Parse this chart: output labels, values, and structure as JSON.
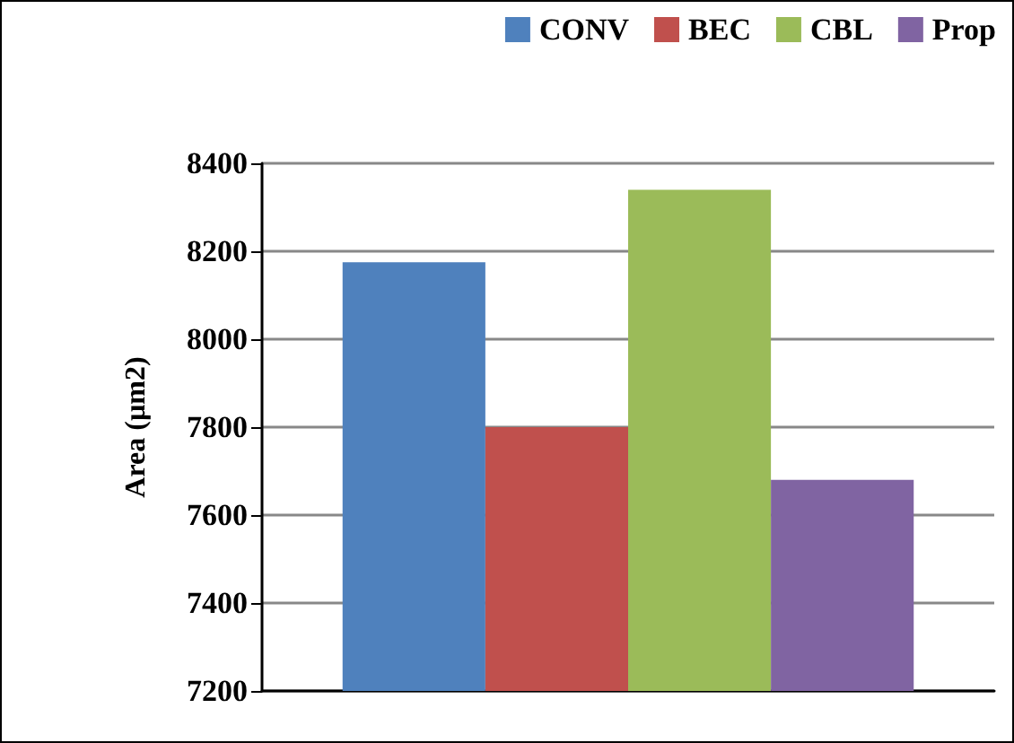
{
  "chart_data": {
    "type": "bar",
    "ylabel": "Area (µm2)",
    "categories": [
      null
    ],
    "series": [
      {
        "name": "CONV",
        "color": "#4f81bd",
        "values": [
          8175
        ]
      },
      {
        "name": "BEC",
        "color": "#c0504d",
        "values": [
          7800
        ]
      },
      {
        "name": "CBL",
        "color": "#9bbb59",
        "values": [
          8340
        ]
      },
      {
        "name": "Prop",
        "color": "#8064a2",
        "values": [
          7680
        ]
      }
    ],
    "ylim": [
      7200,
      8400
    ],
    "yticks": [
      7200,
      7400,
      7600,
      7800,
      8000,
      8200,
      8400
    ],
    "grid": "y",
    "legend": "top right"
  }
}
